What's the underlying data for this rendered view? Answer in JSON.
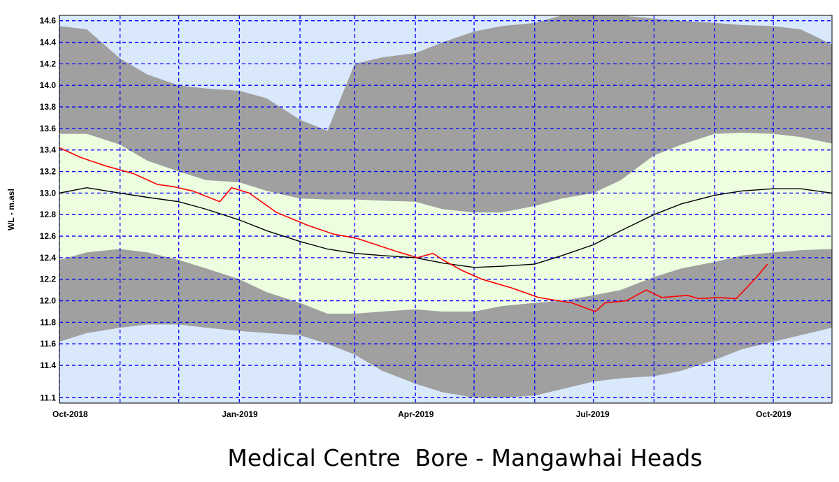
{
  "chart_data": {
    "type": "area",
    "title": "Medical Centre  Bore - Mangawhai Heads",
    "xlabel": "",
    "ylabel": "WL - m.asl",
    "xlim": [
      "2018-10-01",
      "2019-10-31"
    ],
    "ylim": [
      11.05,
      14.65
    ],
    "y_ticks": [
      11.1,
      11.4,
      11.6,
      11.8,
      12.0,
      12.2,
      12.4,
      12.6,
      12.8,
      13.0,
      13.2,
      13.4,
      13.6,
      13.8,
      14.0,
      14.2,
      14.4,
      14.6
    ],
    "x_ticks": [
      {
        "date": "2018-10-01",
        "label": "Oct-2018"
      },
      {
        "date": "2019-01-01",
        "label": "Jan-2019"
      },
      {
        "date": "2019-04-01",
        "label": "Apr-2019"
      },
      {
        "date": "2019-07-01",
        "label": "Jul-2019"
      },
      {
        "date": "2019-10-01",
        "label": "Oct-2019"
      }
    ],
    "grid": true,
    "legend": "none",
    "colors": {
      "background": "#d9e8fb",
      "grid": "#0000ff",
      "outer_band": "#a0a0a0",
      "inner_band": "#ecfde0",
      "median": "#000000",
      "observed": "#ff0000"
    },
    "dates": [
      "2018-10-01",
      "2018-10-15",
      "2018-11-01",
      "2018-11-15",
      "2018-12-01",
      "2018-12-15",
      "2019-01-01",
      "2019-01-15",
      "2019-02-01",
      "2019-02-15",
      "2019-03-01",
      "2019-03-15",
      "2019-04-01",
      "2019-04-15",
      "2019-05-01",
      "2019-05-15",
      "2019-06-01",
      "2019-06-15",
      "2019-07-01",
      "2019-07-15",
      "2019-08-01",
      "2019-08-15",
      "2019-09-01",
      "2019-09-15",
      "2019-10-01",
      "2019-10-15",
      "2019-10-31"
    ],
    "series": [
      {
        "role": "outer_upper",
        "values": [
          14.55,
          14.52,
          14.25,
          14.1,
          14.0,
          13.97,
          13.95,
          13.88,
          13.68,
          13.58,
          14.2,
          14.26,
          14.3,
          14.4,
          14.5,
          14.55,
          14.58,
          14.65,
          14.65,
          14.65,
          14.62,
          14.6,
          14.58,
          14.56,
          14.55,
          14.52,
          14.38
        ]
      },
      {
        "role": "inner_upper",
        "values": [
          13.55,
          13.55,
          13.45,
          13.3,
          13.2,
          13.12,
          13.1,
          13.02,
          12.95,
          12.94,
          12.94,
          12.93,
          12.92,
          12.85,
          12.82,
          12.82,
          12.88,
          12.95,
          13.0,
          13.12,
          13.35,
          13.45,
          13.55,
          13.56,
          13.55,
          13.52,
          13.46
        ]
      },
      {
        "role": "median",
        "values": [
          13.0,
          13.05,
          13.0,
          12.96,
          12.92,
          12.85,
          12.75,
          12.65,
          12.55,
          12.48,
          12.44,
          12.42,
          12.4,
          12.35,
          12.31,
          12.32,
          12.34,
          12.42,
          12.52,
          12.65,
          12.8,
          12.9,
          12.98,
          13.02,
          13.04,
          13.04,
          13.0
        ]
      },
      {
        "role": "inner_lower",
        "values": [
          12.38,
          12.45,
          12.48,
          12.45,
          12.38,
          12.3,
          12.2,
          12.08,
          11.98,
          11.88,
          11.88,
          11.9,
          11.92,
          11.9,
          11.9,
          11.95,
          11.98,
          12.0,
          12.05,
          12.1,
          12.22,
          12.3,
          12.36,
          12.42,
          12.45,
          12.47,
          12.48
        ]
      },
      {
        "role": "outer_lower",
        "values": [
          11.62,
          11.7,
          11.75,
          11.78,
          11.78,
          11.75,
          11.72,
          11.7,
          11.68,
          11.6,
          11.5,
          11.35,
          11.23,
          11.15,
          11.1,
          11.1,
          11.12,
          11.18,
          11.25,
          11.28,
          11.3,
          11.35,
          11.45,
          11.55,
          11.62,
          11.68,
          11.75
        ]
      },
      {
        "role": "observed",
        "x": [
          "2018-10-01",
          "2018-10-12",
          "2018-10-25",
          "2018-11-08",
          "2018-11-20",
          "2018-11-28",
          "2018-12-08",
          "2018-12-22",
          "2018-12-28",
          "2019-01-06",
          "2019-01-20",
          "2019-02-05",
          "2019-02-18",
          "2019-03-02",
          "2019-03-12",
          "2019-03-22",
          "2019-04-02",
          "2019-04-10",
          "2019-04-15",
          "2019-04-25",
          "2019-05-05",
          "2019-05-20",
          "2019-06-03",
          "2019-06-20",
          "2019-07-02",
          "2019-07-07",
          "2019-07-18",
          "2019-07-28",
          "2019-08-05",
          "2019-08-18",
          "2019-08-24",
          "2019-09-03",
          "2019-09-12",
          "2019-09-22",
          "2019-09-28"
        ],
        "values": [
          13.42,
          13.33,
          13.25,
          13.18,
          13.08,
          13.06,
          13.02,
          12.92,
          13.05,
          13.0,
          12.82,
          12.7,
          12.62,
          12.58,
          12.52,
          12.46,
          12.4,
          12.44,
          12.38,
          12.28,
          12.2,
          12.12,
          12.03,
          11.98,
          11.9,
          11.98,
          12.0,
          12.1,
          12.03,
          12.05,
          12.02,
          12.03,
          12.02,
          12.21,
          12.34
        ]
      }
    ]
  }
}
